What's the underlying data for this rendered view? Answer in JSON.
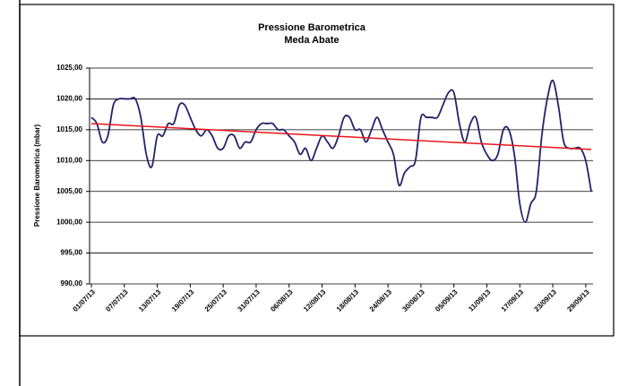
{
  "chart_data": {
    "type": "line",
    "title": "Pressione Barometrica",
    "subtitle": "Meda Abate",
    "y_label": "Pressione Barometrica (mbar)",
    "categories": [
      "01/07/13",
      null,
      null,
      null,
      null,
      null,
      "07/07/13",
      null,
      null,
      null,
      null,
      null,
      "13/07/13",
      null,
      null,
      null,
      null,
      null,
      "19/07/13",
      null,
      null,
      null,
      null,
      null,
      "25/07/13",
      null,
      null,
      null,
      null,
      null,
      "31/07/13",
      null,
      null,
      null,
      null,
      null,
      "06/08/13",
      null,
      null,
      null,
      null,
      null,
      "12/08/13",
      null,
      null,
      null,
      null,
      null,
      "18/08/13",
      null,
      null,
      null,
      null,
      null,
      "24/08/13",
      null,
      null,
      null,
      null,
      null,
      "30/08/13",
      null,
      null,
      null,
      null,
      null,
      "05/09/13",
      null,
      null,
      null,
      null,
      null,
      "11/09/13",
      null,
      null,
      null,
      null,
      null,
      "17/09/13",
      null,
      null,
      null,
      null,
      null,
      "23/09/13",
      null,
      null,
      null,
      null,
      null,
      "29/09/13",
      null
    ],
    "series": [
      {
        "color": "#22226a",
        "values": [
          1017,
          1016,
          1013,
          1014,
          1019,
          1020,
          1020,
          1020,
          1020,
          1017,
          1011,
          1009,
          1014,
          1014,
          1016,
          1016,
          1019,
          1019,
          1017,
          1015,
          1014,
          1015,
          1014,
          1012,
          1012,
          1014,
          1014,
          1012,
          1013,
          1013,
          1015,
          1016,
          1016,
          1016,
          1015,
          1015,
          1014,
          1013,
          1011,
          1012,
          1010,
          1012,
          1014,
          1013,
          1012,
          1014,
          1017,
          1017,
          1015,
          1015,
          1013,
          1015,
          1017,
          1015,
          1013,
          1011,
          1006,
          1008,
          1009,
          1010,
          1017,
          1017,
          1017,
          1017,
          1019,
          1021,
          1021,
          1016,
          1013,
          1016,
          1017,
          1013,
          1011,
          1010,
          1011,
          1015,
          1015,
          1011,
          1003,
          1000,
          1003,
          1005,
          1014,
          1020,
          1023,
          1019,
          1013,
          1012,
          1012,
          1012,
          1010,
          1005
        ]
      }
    ],
    "trendline": {
      "color": "#e8141c",
      "values": [
        1016,
        1011.8
      ]
    },
    "ylim": [
      990,
      1025
    ],
    "yticks": [
      {
        "value": 990,
        "label": "990,00"
      },
      {
        "value": 995,
        "label": "995,00"
      },
      {
        "value": 1000,
        "label": "1000,00"
      },
      {
        "value": 1005,
        "label": "1005,00"
      },
      {
        "value": 1010,
        "label": "1010,00"
      },
      {
        "value": 1015,
        "label": "1015,00"
      },
      {
        "value": 1020,
        "label": "1020,00"
      },
      {
        "value": 1025,
        "label": "1025,00"
      }
    ],
    "grid": true
  }
}
